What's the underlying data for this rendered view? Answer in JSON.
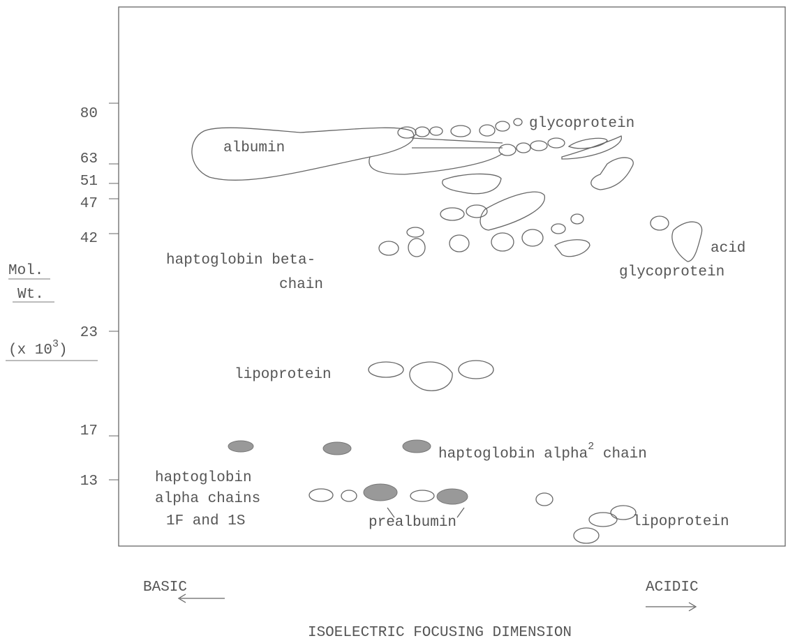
{
  "y_axis": {
    "ticks": [
      "80",
      "63",
      "51",
      "47",
      "42",
      "23",
      "17",
      "13"
    ],
    "label": {
      "line1": "Mol.",
      "line2": "Wt.",
      "line3": "(x 10",
      "superscript": "3",
      "close": ")"
    }
  },
  "spots": {
    "albumin": "albumin",
    "glycoprotein": "glycoprotein",
    "haptoglobin_beta": [
      "haptoglobin beta-",
      "chain"
    ],
    "acid_glycoprotein": [
      "acid",
      "glycoprotein"
    ],
    "lipoprotein_mid": "lipoprotein",
    "haptoglobin_alpha2": {
      "text": "haptoglobin alpha",
      "superscript": "2",
      "rest": " chain"
    },
    "haptoglobin_alpha_chains": [
      "haptoglobin",
      "alpha chains",
      "1F and 1S"
    ],
    "prealbumin": "prealbumin",
    "lipoprotein_low": "lipoprotein"
  },
  "x_axis": {
    "left": "BASIC",
    "right": "ACIDIC",
    "title": "ISOELECTRIC FOCUSING DIMENSION"
  }
}
